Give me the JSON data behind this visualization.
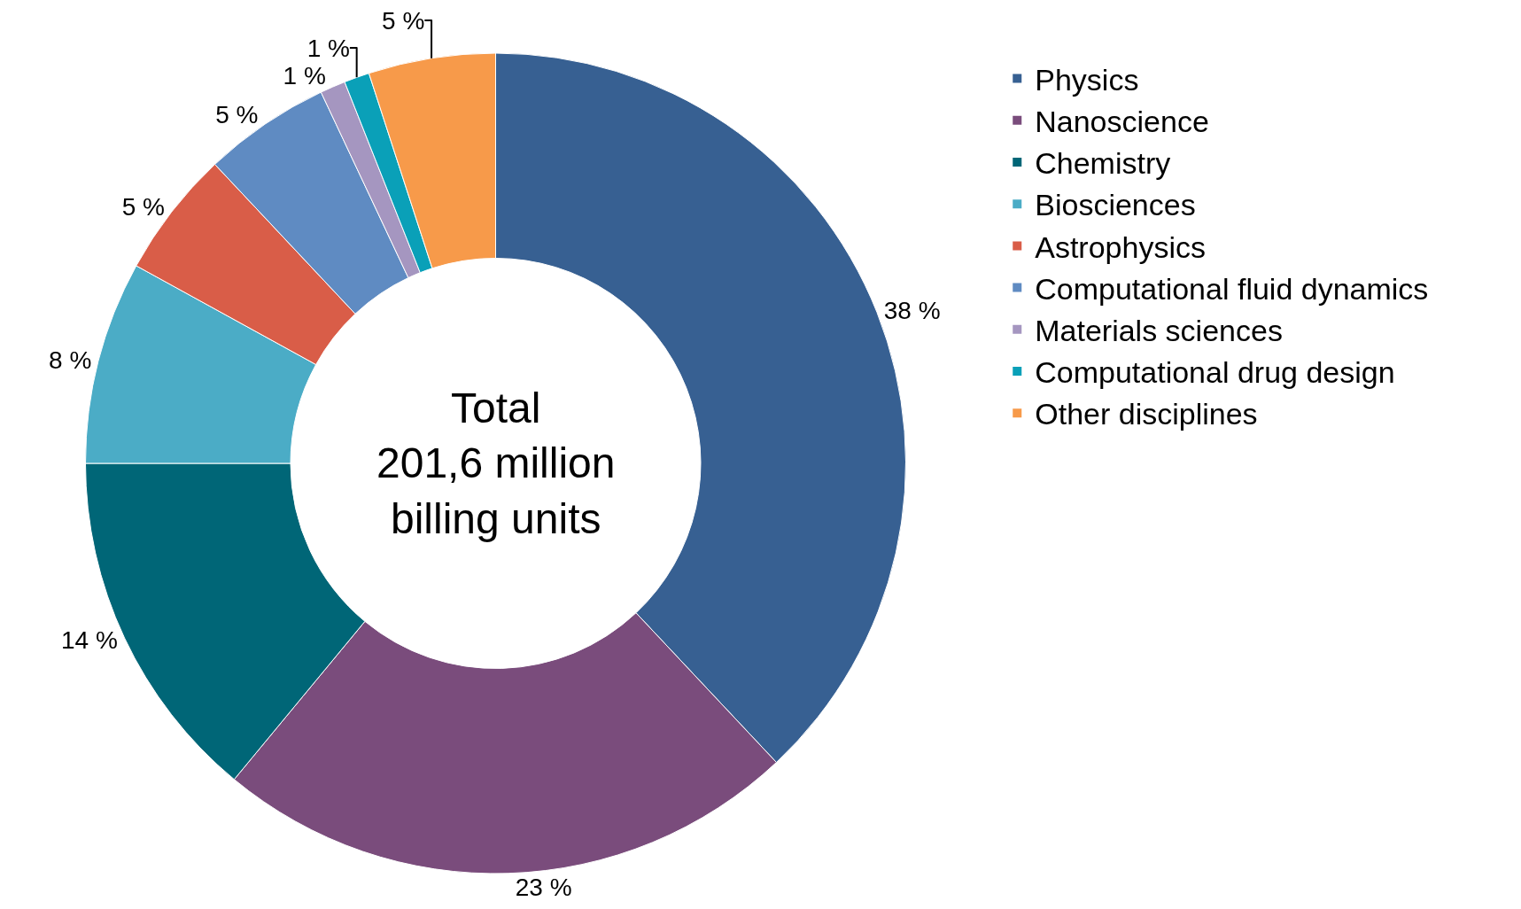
{
  "chart_data": {
    "type": "donut",
    "categories": [
      "Physics",
      "Nanoscience",
      "Chemistry",
      "Biosciences",
      "Astrophysics",
      "Computational fluid dynamics",
      "Materials sciences",
      "Computational drug design",
      "Other disciplines"
    ],
    "values": [
      38,
      23,
      14,
      8,
      5,
      5,
      1,
      1,
      5
    ],
    "colors": [
      "#376092",
      "#7a4c7c",
      "#006677",
      "#4bacc6",
      "#d95d48",
      "#5f8bc2",
      "#a596c0",
      "#0aa0b8",
      "#f79a4a"
    ],
    "value_labels": [
      "38 %",
      "23 %",
      "14 %",
      "8 %",
      "5 %",
      "5 %",
      "1 %",
      "1 %",
      "5 %"
    ],
    "annotations": [
      "Total\n201,6 million\nbilling units"
    ],
    "legend": "top right"
  }
}
